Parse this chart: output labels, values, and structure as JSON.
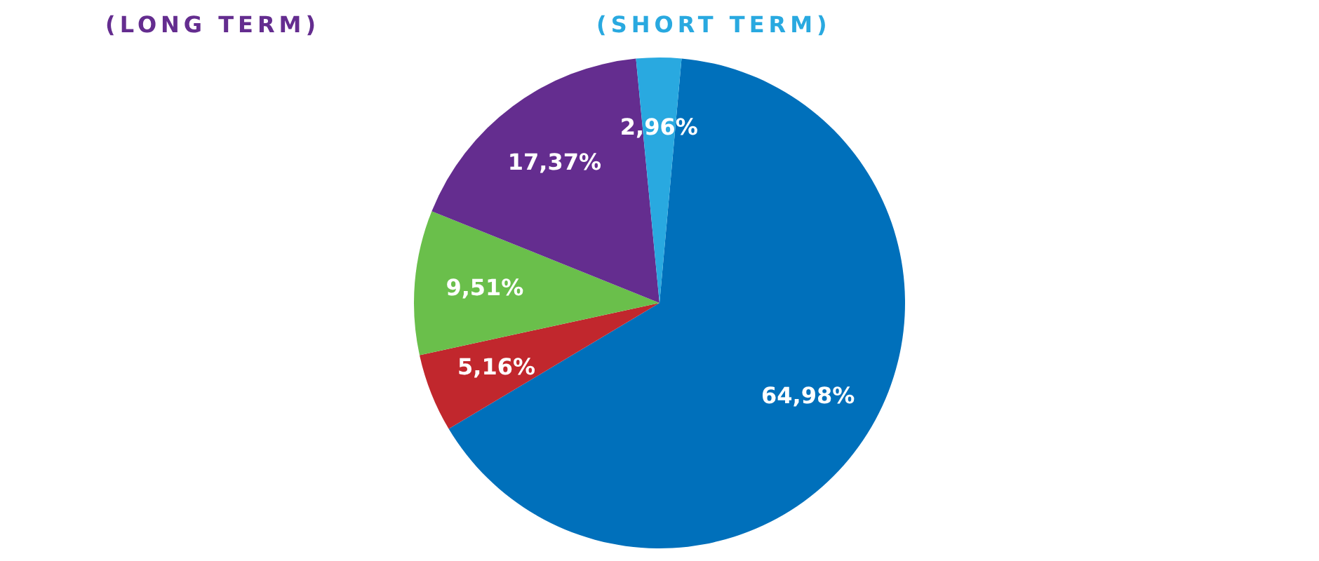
{
  "chart_data": {
    "type": "pie",
    "annotations": [
      "(LONG TERM)",
      "(SHORT TERM)"
    ],
    "categories": [
      null,
      null,
      null,
      null,
      null
    ],
    "values": [
      64.98,
      5.16,
      9.51,
      17.37,
      2.96
    ],
    "value_labels": [
      "64,98%",
      "5,16%",
      "9,51%",
      "17,37%",
      "2,96%"
    ],
    "colors": [
      "#0070bb",
      "#c1272d",
      "#6abf4b",
      "#642d8f",
      "#29a9e0"
    ]
  }
}
